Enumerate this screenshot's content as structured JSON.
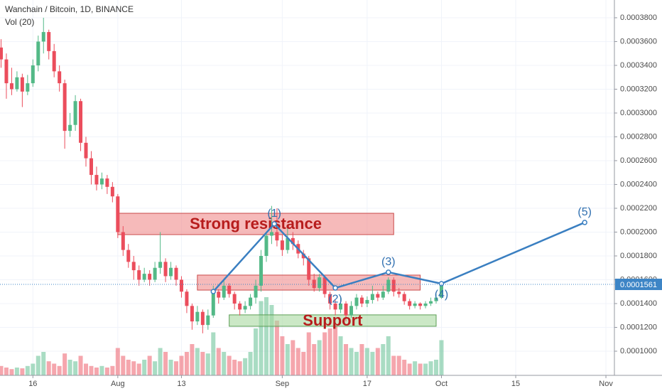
{
  "chart_data": {
    "type": "candlestick",
    "title": "Wanchain / Bitcoin, 1D, BINANCE",
    "volume_label": "Vol (20)",
    "up_color": "#53b987",
    "down_color": "#eb4d5c",
    "ohlc": [
      [
        0.000355,
        0.000362,
        0.000338,
        0.000345
      ],
      [
        0.000345,
        0.00035,
        0.000312,
        0.000325
      ],
      [
        0.000325,
        0.000338,
        0.000315,
        0.00032
      ],
      [
        0.00032,
        0.000335,
        0.000318,
        0.00033
      ],
      [
        0.00033,
        0.000333,
        0.000305,
        0.000318
      ],
      [
        0.000318,
        0.000332,
        0.000315,
        0.000325
      ],
      [
        0.000325,
        0.000345,
        0.000322,
        0.00034
      ],
      [
        0.00034,
        0.000365,
        0.000335,
        0.00036
      ],
      [
        0.00036,
        0.00038,
        0.00035,
        0.000368
      ],
      [
        0.000368,
        0.00037,
        0.000345,
        0.000352
      ],
      [
        0.000352,
        0.000358,
        0.00033,
        0.000335
      ],
      [
        0.000335,
        0.00034,
        0.000318,
        0.000325
      ],
      [
        0.000325,
        0.000328,
        0.00027,
        0.000285
      ],
      [
        0.000285,
        0.0003,
        0.00028,
        0.00029
      ],
      [
        0.00029,
        0.000315,
        0.000285,
        0.00031
      ],
      [
        0.00031,
        0.000312,
        0.000268,
        0.000275
      ],
      [
        0.000275,
        0.00028,
        0.000255,
        0.000262
      ],
      [
        0.000262,
        0.000268,
        0.00024,
        0.000248
      ],
      [
        0.000248,
        0.000255,
        0.000235,
        0.00024
      ],
      [
        0.00024,
        0.00025,
        0.000236,
        0.000245
      ],
      [
        0.000245,
        0.000248,
        0.000232,
        0.000238
      ],
      [
        0.000238,
        0.000242,
        0.000225,
        0.00023
      ],
      [
        0.00023,
        0.000232,
        0.000195,
        0.0002
      ],
      [
        0.0002,
        0.000205,
        0.00018,
        0.000185
      ],
      [
        0.000185,
        0.00019,
        0.00017,
        0.000175
      ],
      [
        0.000175,
        0.00018,
        0.00016,
        0.000168
      ],
      [
        0.000168,
        0.000172,
        0.000155,
        0.00016
      ],
      [
        0.00016,
        0.00017,
        0.000158,
        0.000165
      ],
      [
        0.000165,
        0.000168,
        0.000155,
        0.00016
      ],
      [
        0.00016,
        0.000175,
        0.000158,
        0.00017
      ],
      [
        0.00017,
        0.0002,
        0.000165,
        0.000175
      ],
      [
        0.000175,
        0.000178,
        0.000158,
        0.000163
      ],
      [
        0.000163,
        0.000175,
        0.00016,
        0.00017
      ],
      [
        0.00017,
        0.000172,
        0.000155,
        0.00016
      ],
      [
        0.00016,
        0.000163,
        0.000145,
        0.00015
      ],
      [
        0.00015,
        0.000152,
        0.000132,
        0.000138
      ],
      [
        0.000138,
        0.00014,
        0.000118,
        0.000125
      ],
      [
        0.000125,
        0.000138,
        0.000122,
        0.000133
      ],
      [
        0.000133,
        0.000135,
        0.000115,
        0.000122
      ],
      [
        0.000122,
        0.000135,
        0.000118,
        0.00013
      ],
      [
        0.00013,
        0.000155,
        0.000128,
        0.00015
      ],
      [
        0.00015,
        0.000152,
        0.00014,
        0.000145
      ],
      [
        0.000145,
        0.00016,
        0.000143,
        0.000155
      ],
      [
        0.000155,
        0.000157,
        0.000145,
        0.000148
      ],
      [
        0.000148,
        0.00015,
        0.000135,
        0.00014
      ],
      [
        0.00014,
        0.000142,
        0.00013,
        0.000135
      ],
      [
        0.000135,
        0.000142,
        0.000132,
        0.000138
      ],
      [
        0.000138,
        0.000148,
        0.000135,
        0.000145
      ],
      [
        0.000145,
        0.00016,
        0.00014,
        0.000155
      ],
      [
        0.000155,
        0.000185,
        0.00015,
        0.00018
      ],
      [
        0.00018,
        0.0002,
        0.000175,
        0.000197
      ],
      [
        0.000197,
        0.000222,
        0.00019,
        0.0002
      ],
      [
        0.0002,
        0.00022,
        0.000188,
        0.000193
      ],
      [
        0.000193,
        0.000198,
        0.00018,
        0.000185
      ],
      [
        0.000185,
        0.000205,
        0.000182,
        0.000195
      ],
      [
        0.000195,
        0.0002,
        0.000185,
        0.00019
      ],
      [
        0.00019,
        0.000193,
        0.000178,
        0.000182
      ],
      [
        0.000182,
        0.000185,
        0.000172,
        0.000178
      ],
      [
        0.000178,
        0.00018,
        0.000155,
        0.00016
      ],
      [
        0.00016,
        0.000165,
        0.00015,
        0.000153
      ],
      [
        0.000153,
        0.000165,
        0.00015,
        0.000162
      ],
      [
        0.000162,
        0.000163,
        0.000145,
        0.000148
      ],
      [
        0.000148,
        0.00015,
        0.000135,
        0.00014
      ],
      [
        0.00014,
        0.000143,
        0.00013,
        0.000135
      ],
      [
        0.000135,
        0.000145,
        0.000132,
        0.00014
      ],
      [
        0.00014,
        0.000142,
        0.000125,
        0.00013
      ],
      [
        0.00013,
        0.000142,
        0.000128,
        0.000138
      ],
      [
        0.000138,
        0.000148,
        0.000135,
        0.000145
      ],
      [
        0.000145,
        0.000147,
        0.000137,
        0.00014
      ],
      [
        0.00014,
        0.000146,
        0.000137,
        0.000143
      ],
      [
        0.000143,
        0.000155,
        0.00014,
        0.000148
      ],
      [
        0.000148,
        0.00015,
        0.000142,
        0.000145
      ],
      [
        0.000145,
        0.000155,
        0.000143,
        0.00015
      ],
      [
        0.00015,
        0.000162,
        0.000148,
        0.00016
      ],
      [
        0.00016,
        0.000162,
        0.000146,
        0.00015
      ],
      [
        0.00015,
        0.000153,
        0.000145,
        0.000148
      ],
      [
        0.000148,
        0.00015,
        0.000139,
        0.000142
      ],
      [
        0.000142,
        0.000144,
        0.000135,
        0.000138
      ],
      [
        0.000138,
        0.000142,
        0.000136,
        0.00014
      ],
      [
        0.00014,
        0.000141,
        0.000135,
        0.000138
      ],
      [
        0.000138,
        0.000142,
        0.000136,
        0.00014
      ],
      [
        0.00014,
        0.000145,
        0.000138,
        0.000142
      ],
      [
        0.000142,
        0.000148,
        0.00014,
        0.000145
      ],
      [
        0.000145,
        0.000158,
        0.000144,
        0.0001561
      ]
    ],
    "volume": [
      12,
      10,
      8,
      10,
      9,
      12,
      15,
      25,
      30,
      18,
      15,
      12,
      28,
      20,
      18,
      25,
      15,
      12,
      10,
      12,
      10,
      12,
      35,
      25,
      20,
      18,
      15,
      20,
      25,
      18,
      35,
      30,
      20,
      18,
      25,
      30,
      40,
      35,
      30,
      28,
      55,
      35,
      30,
      25,
      20,
      18,
      22,
      30,
      60,
      95,
      100,
      90,
      70,
      50,
      40,
      45,
      35,
      30,
      55,
      40,
      45,
      55,
      60,
      65,
      50,
      40,
      35,
      30,
      40,
      35,
      30,
      35,
      40,
      50,
      25,
      25,
      20,
      15,
      18,
      15,
      15,
      18,
      20,
      45
    ],
    "xlim": [
      -0.2,
      115.6
    ],
    "xticks": [
      {
        "value": 6,
        "label": "16"
      },
      {
        "value": 22,
        "label": "Aug"
      },
      {
        "value": 34,
        "label": "13"
      },
      {
        "value": 53,
        "label": "Sep"
      },
      {
        "value": 69,
        "label": "17"
      },
      {
        "value": 83,
        "label": "Oct"
      },
      {
        "value": 97,
        "label": "15"
      },
      {
        "value": 114,
        "label": "Nov"
      }
    ],
    "ylim": [
      7.97e-05,
      0.0003949
    ],
    "yticks": [
      {
        "value": 0.0001,
        "label": "0.0001000"
      },
      {
        "value": 0.00012,
        "label": "0.0001200"
      },
      {
        "value": 0.00014,
        "label": "0.0001400"
      },
      {
        "value": 0.00016,
        "label": "0.0001600"
      },
      {
        "value": 0.00018,
        "label": "0.0001800"
      },
      {
        "value": 0.0002,
        "label": "0.0002000"
      },
      {
        "value": 0.00022,
        "label": "0.0002200"
      },
      {
        "value": 0.00024,
        "label": "0.0002400"
      },
      {
        "value": 0.00026,
        "label": "0.0002600"
      },
      {
        "value": 0.00028,
        "label": "0.0002800"
      },
      {
        "value": 0.0003,
        "label": "0.0003000"
      },
      {
        "value": 0.00032,
        "label": "0.0003200"
      },
      {
        "value": 0.00034,
        "label": "0.0003400"
      },
      {
        "value": 0.00036,
        "label": "0.0003600"
      },
      {
        "value": 0.00038,
        "label": "0.0003800"
      }
    ],
    "grid": true,
    "last_price": {
      "value": 0.0001561,
      "label": "0.0001561",
      "color": "#3d85c6"
    },
    "boxes": [
      {
        "text": "Strong resistance",
        "x": [
          22,
          74
        ],
        "y": [
          0.0001979,
          0.0002158
        ],
        "color": "#f08c8c",
        "border": "#c94a4a"
      },
      {
        "x": [
          37,
          79
        ],
        "y": [
          0.0001513,
          0.0001639
        ],
        "color": "#f08c8c",
        "border": "#c94a4a"
      },
      {
        "text": "Support",
        "x": [
          43,
          82
        ],
        "y": [
          0.0001209,
          0.0001305
        ],
        "color": "#a8d8a0",
        "border": "#5c9e55"
      }
    ],
    "wave": {
      "color": "#3a7fc1",
      "x": [
        40,
        51.5,
        63,
        73,
        83,
        110
      ],
      "y": [
        0.0001501,
        0.0002069,
        0.0001531,
        0.0001663,
        0.0001567,
        0.0002081
      ],
      "labels": [
        null,
        "(1)",
        "(2)",
        "(3)",
        "(4)",
        "(5)"
      ]
    }
  }
}
